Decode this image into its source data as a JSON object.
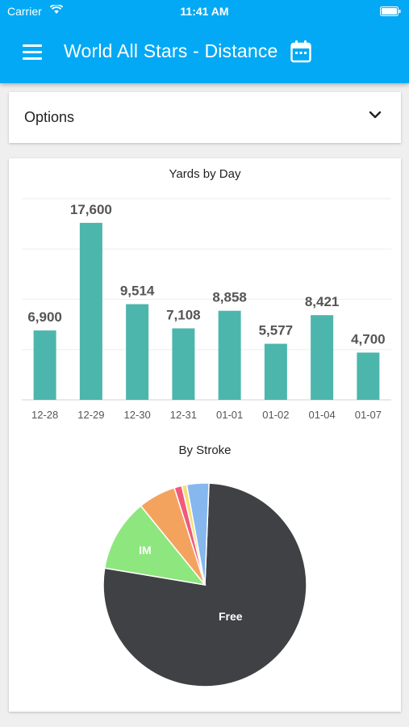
{
  "status_bar": {
    "carrier": "Carrier",
    "time": "11:41 AM"
  },
  "header": {
    "title": "World All Stars - Distance",
    "menu_icon": "hamburger-menu-icon",
    "calendar_icon": "calendar-icon",
    "background": "#03a9f4"
  },
  "options": {
    "label": "Options",
    "icon": "chevron-down-icon"
  },
  "chart_data": [
    {
      "type": "bar",
      "title": "Yards by Day",
      "categories": [
        "12-28",
        "12-29",
        "12-30",
        "12-31",
        "01-01",
        "01-02",
        "01-04",
        "01-07"
      ],
      "values": [
        6900,
        17600,
        9514,
        7108,
        8858,
        5577,
        8421,
        4700
      ],
      "value_labels": [
        "6,900",
        "17,600",
        "9,514",
        "7,108",
        "8,858",
        "5,577",
        "8,421",
        "4,700"
      ],
      "ylim": [
        0,
        20000
      ],
      "grid": true,
      "color": "#4db6ac"
    },
    {
      "type": "pie",
      "title": "By Stroke",
      "slices": [
        {
          "label": "Free",
          "value": 77,
          "color": "#3f4144",
          "show_label": true
        },
        {
          "label": "IM",
          "value": 11.5,
          "color": "#8ee67e",
          "show_label": true
        },
        {
          "label": "",
          "value": 6,
          "color": "#f4a35f",
          "show_label": false
        },
        {
          "label": "",
          "value": 1.2,
          "color": "#ef5a7c",
          "show_label": false
        },
        {
          "label": "",
          "value": 0.8,
          "color": "#f3e07a",
          "show_label": false
        },
        {
          "label": "",
          "value": 3.5,
          "color": "#86b7ee",
          "show_label": false
        }
      ]
    }
  ]
}
